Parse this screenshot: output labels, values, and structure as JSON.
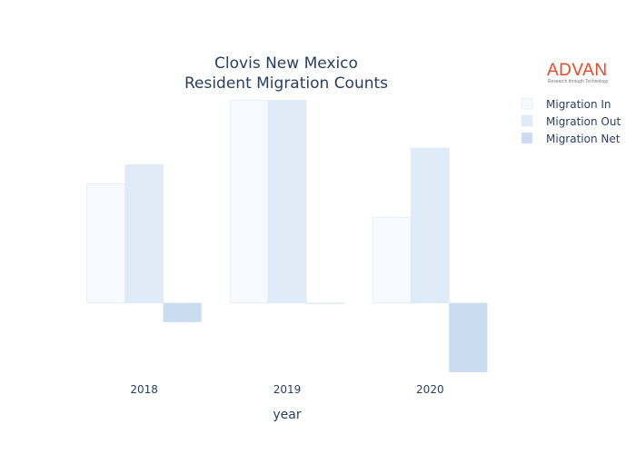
{
  "logo": {
    "name": "ADVAN",
    "tagline": "Research through Technology"
  },
  "chart_data": {
    "type": "bar",
    "title": [
      "Clovis New Mexico",
      "Resident Migration Counts"
    ],
    "xlabel": "year",
    "ylabel": "",
    "categories": [
      "2018",
      "2019",
      "2020"
    ],
    "series": [
      {
        "name": "Migration In",
        "values": [
          1000,
          1700,
          720
        ],
        "color": "#f6f9fd"
      },
      {
        "name": "Migration Out",
        "values": [
          1160,
          1700,
          1300
        ],
        "color": "#e0ebf8"
      },
      {
        "name": "Migration Net",
        "values": [
          -160,
          0,
          -580
        ],
        "color": "#c9dcf0"
      }
    ],
    "ylim": [
      -620,
      1780
    ],
    "y_tick_labels": "none",
    "grid": false,
    "legend_position": "top-right"
  }
}
